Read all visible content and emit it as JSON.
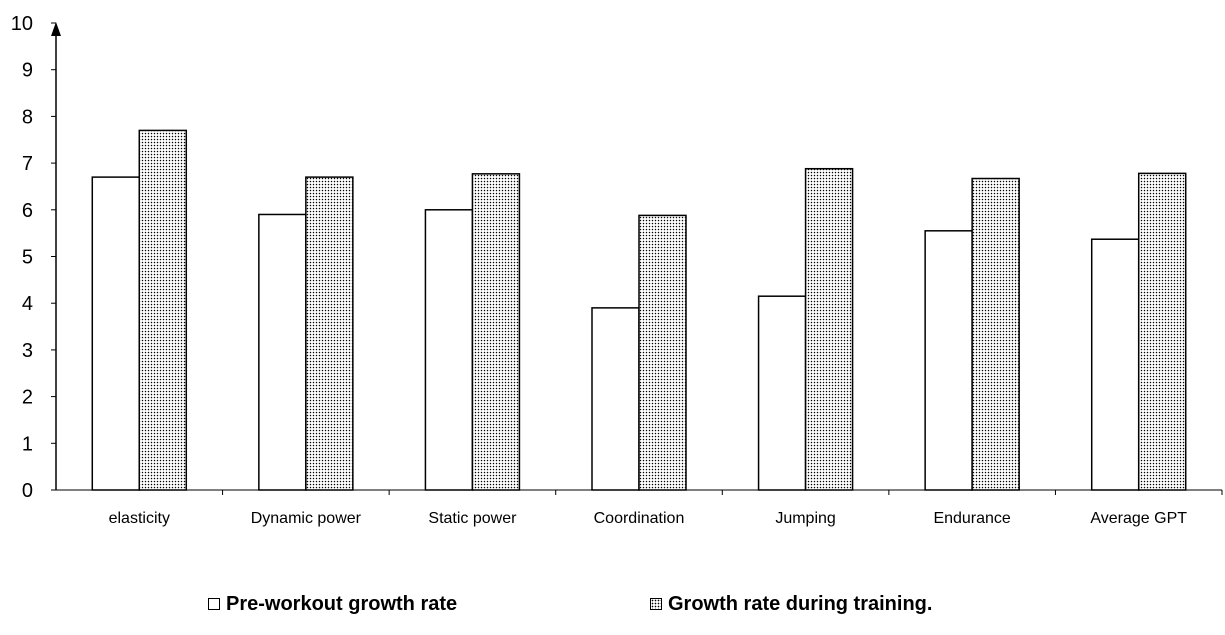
{
  "chart_data": {
    "type": "bar",
    "categories": [
      "elasticity",
      "Dynamic power",
      "Static power",
      "Coordination",
      "Jumping",
      "Endurance",
      "Average GPT"
    ],
    "series": [
      {
        "name": "Pre-workout growth rate",
        "values": [
          6.7,
          5.9,
          6.0,
          3.9,
          4.15,
          5.55,
          5.37
        ],
        "fill": "white"
      },
      {
        "name": "Growth rate during training.",
        "values": [
          7.7,
          6.7,
          6.77,
          5.88,
          6.88,
          6.67,
          6.78
        ],
        "fill": "dotted"
      }
    ],
    "yticks": [
      "0",
      "1",
      "2",
      "3",
      "4",
      "5",
      "6",
      "7",
      "8",
      "9",
      "10"
    ],
    "ylim": [
      0,
      10
    ],
    "title": "",
    "xlabel": "",
    "ylabel": "",
    "grid": false,
    "legend_position": "bottom"
  },
  "legend": {
    "series1_label": "Pre-workout growth rate",
    "series2_label": "Growth rate during training."
  },
  "colors": {
    "bar_stroke": "#000000",
    "bar_fill": "#ffffff",
    "dots": "#000000"
  }
}
